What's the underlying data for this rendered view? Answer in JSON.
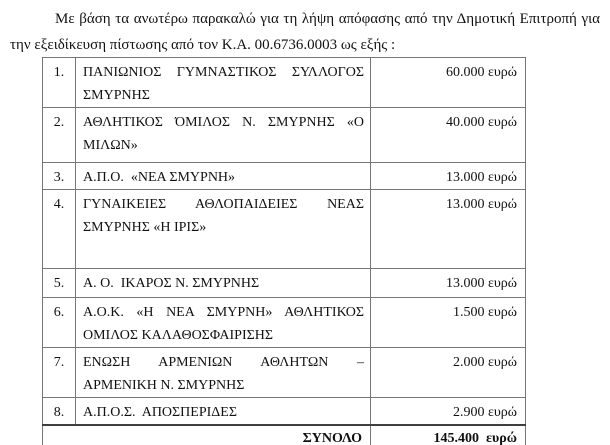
{
  "intro": {
    "text": "Με βάση τα ανωτέρω παρακαλώ για τη λήψη απόφασης από την Δημοτική Επιτροπή για την εξειδίκευση πίστωσης από τον Κ.Α. 00.6736.0003 ως εξής :"
  },
  "table": {
    "rows": [
      {
        "num": "1.",
        "name": "ΠΑΝΙΩΝΙΟΣ ΓΥΜΝΑΣΤΙΚΟΣ ΣΥΛΛΟΓΟΣ ΣΜΥΡΝΗΣ",
        "amount": "60.000 ευρώ"
      },
      {
        "num": "2.",
        "name": "ΑΘΛΗΤΙΚΟΣ ΌΜΙΛΟΣ Ν. ΣΜΥΡΝΗΣ «Ο ΜΙΛΩΝ»",
        "amount": "40.000 ευρώ"
      },
      {
        "num": "3.",
        "name": "Α.Π.Ο.  «ΝΕΑ ΣΜΥΡΝΗ»",
        "amount": "13.000 ευρώ"
      },
      {
        "num": "4.",
        "name": "ΓΥΝΑΙΚΕΙΕΣ ΑΘΛΟΠΑΙΔΕΙΕΣ ΝΕΑΣ ΣΜΥΡΝΗΣ «Η ΙΡΙΣ»",
        "amount": "13.000 ευρώ"
      },
      {
        "num": "5.",
        "name": "Α. Ο.  ΙΚΑΡΟΣ Ν. ΣΜΥΡΝΗΣ",
        "amount": "13.000 ευρώ"
      },
      {
        "num": "6.",
        "name": "Α.Ο.Κ. «Η ΝΕΑ ΣΜΥΡΝΗ» ΑΘΛΗΤΙΚΟΣ ΟΜΙΛΟΣ ΚΑΛΑΘΟΣΦΑΙΡΙΣΗΣ",
        "amount": "1.500 ευρώ"
      },
      {
        "num": "7.",
        "name": "ΕΝΩΣΗ ΑΡΜΕΝΙΩΝ ΑΘΛΗΤΩΝ – ΑΡΜΕΝΙΚΗ Ν. ΣΜΥΡΝΗΣ",
        "amount": "2.000 ευρώ"
      },
      {
        "num": "8.",
        "name": "Α.Π.Ο.Σ.  ΑΠΟΣΠΕΡΙΔΕΣ",
        "amount": "2.900 ευρώ"
      }
    ],
    "total": {
      "label": "ΣΥΝΟΛΟ",
      "amount": "145.400  ευρώ"
    }
  }
}
